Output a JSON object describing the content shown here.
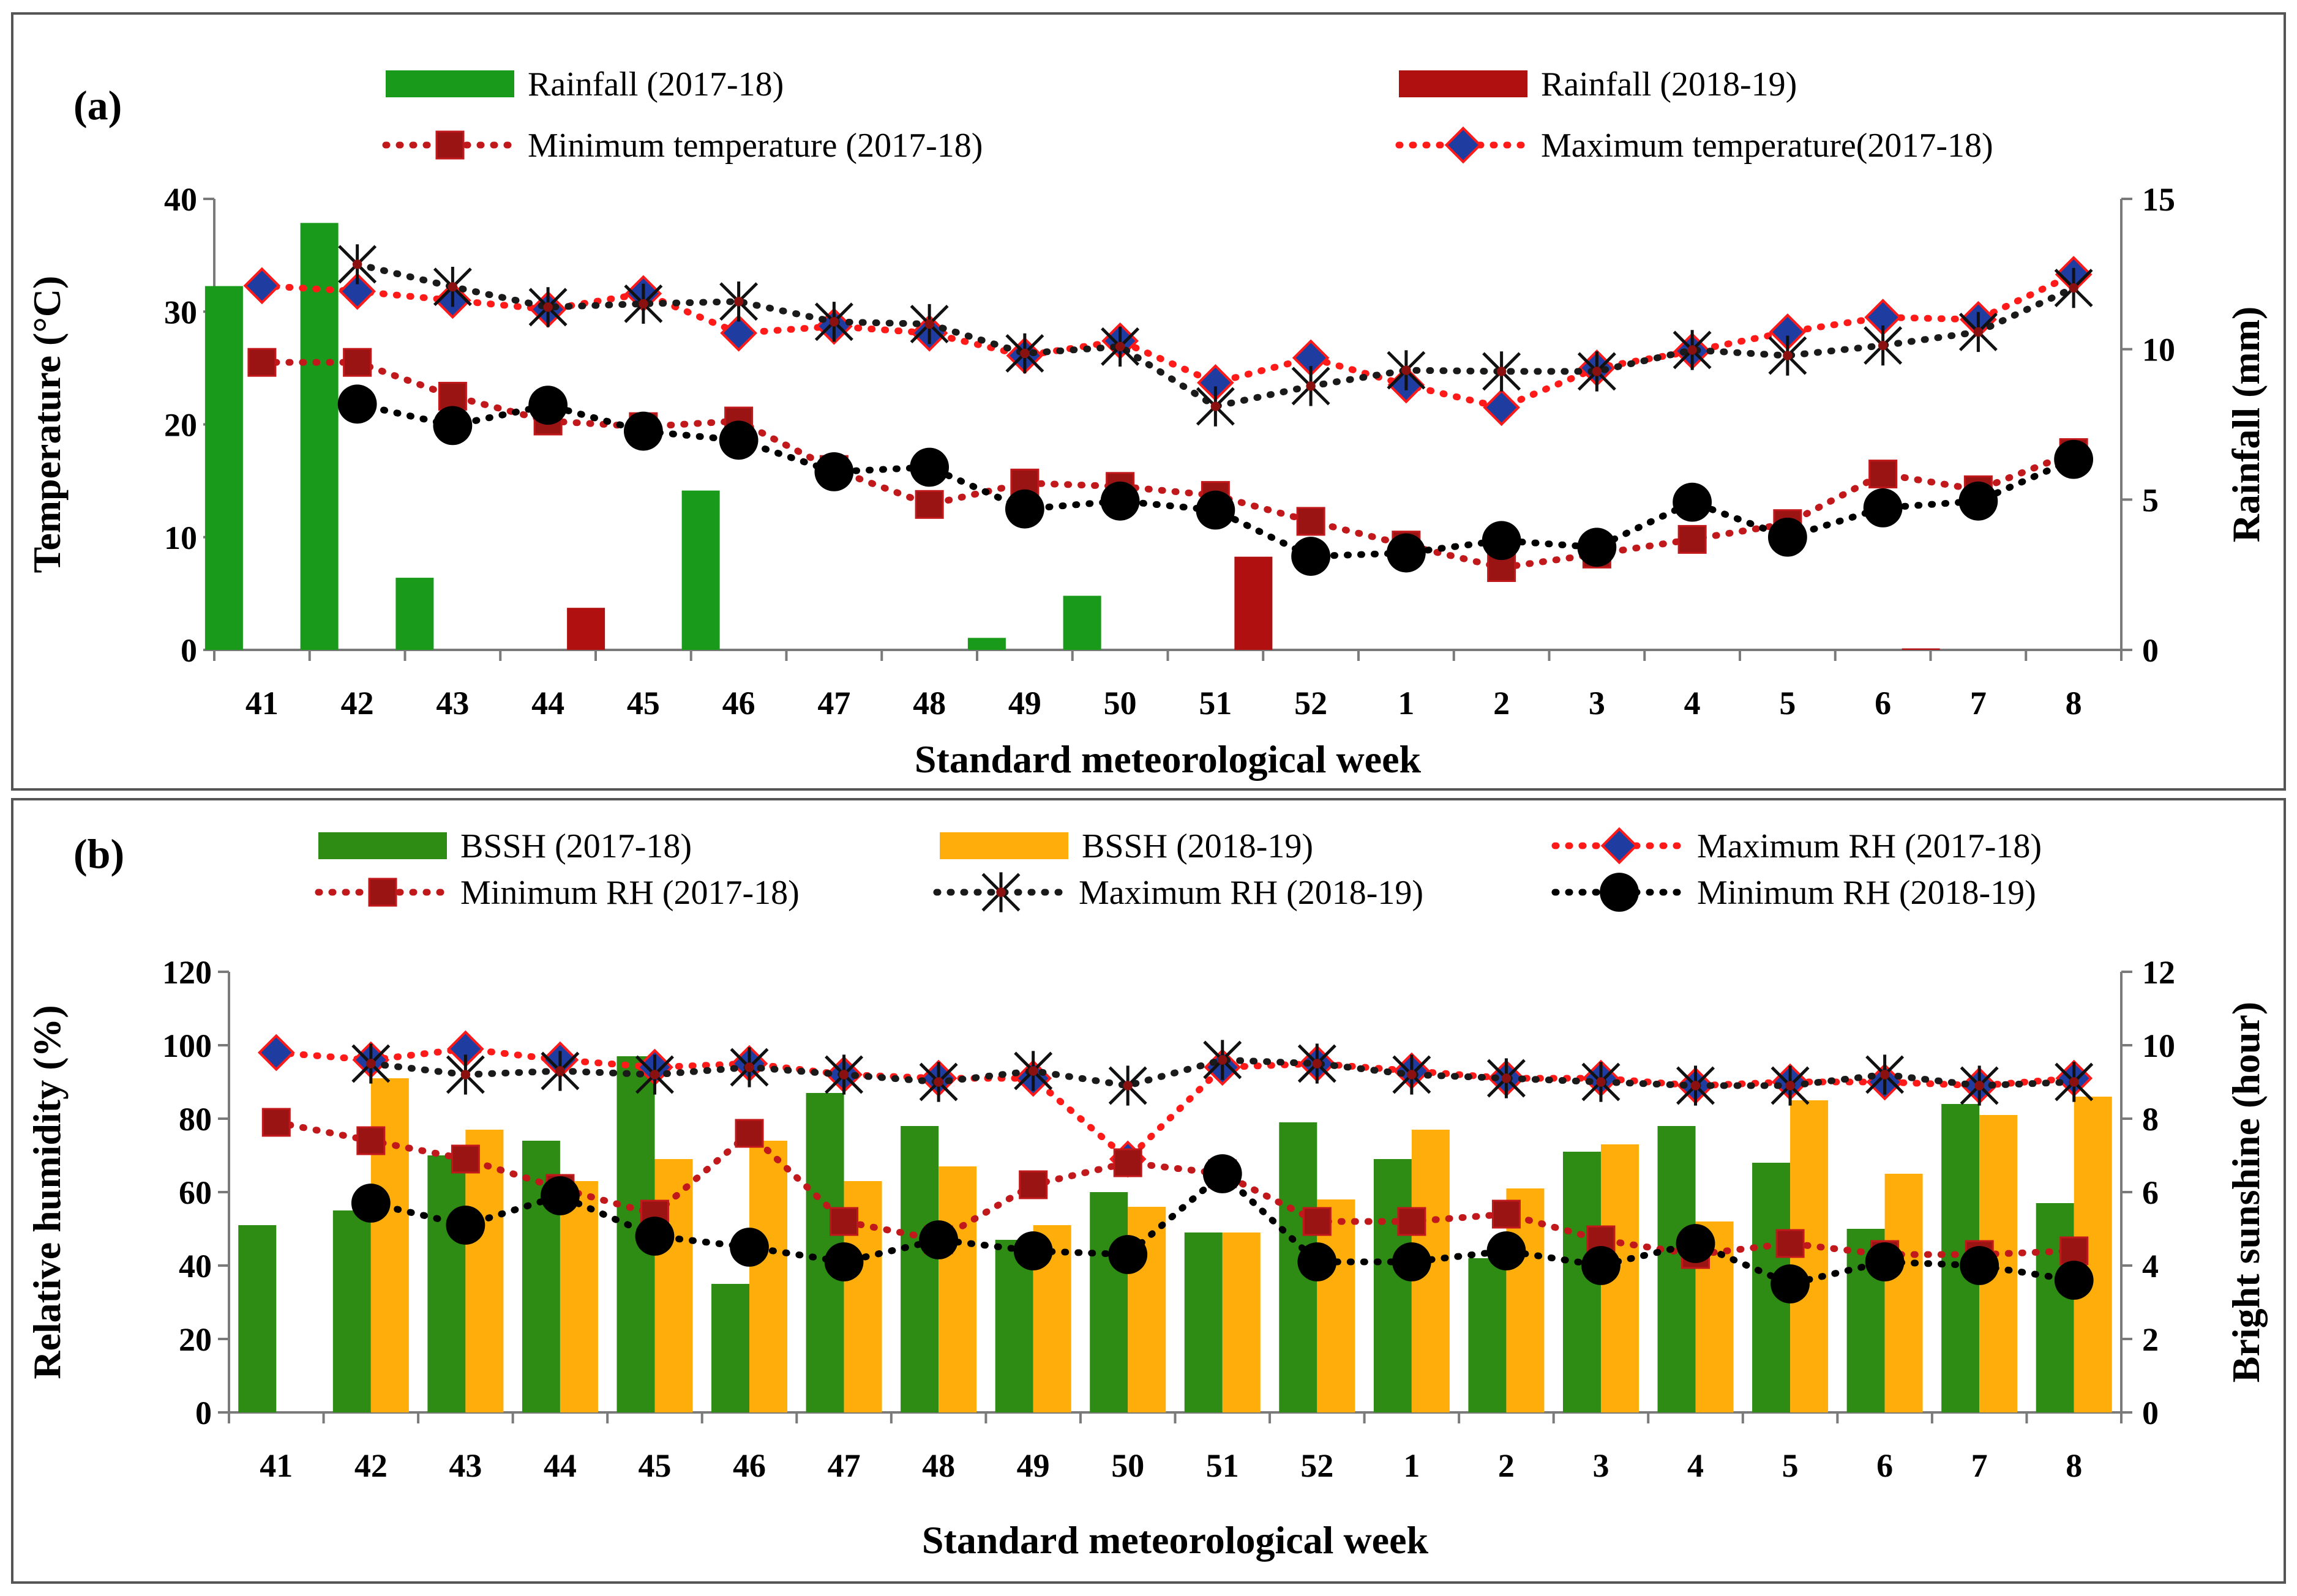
{
  "chart_data": [
    {
      "panel": "(a)",
      "type": "bar+line",
      "title": "",
      "xlabel": "Standard meteorological week",
      "ylabel_left": "Temperature (°C)",
      "ylabel_right": "Rainfall (mm)",
      "ylim_left": [
        0,
        40
      ],
      "ylim_right": [
        0,
        15
      ],
      "yticks_left": [
        "0",
        "10",
        "20",
        "30",
        "40"
      ],
      "yticks_right": [
        "0",
        "5",
        "10",
        "15"
      ],
      "categories": [
        "41",
        "42",
        "43",
        "44",
        "45",
        "46",
        "47",
        "48",
        "49",
        "50",
        "51",
        "52",
        "1",
        "2",
        "3",
        "4",
        "5",
        "6",
        "7",
        "8"
      ],
      "bars": [
        {
          "name": "Rainfall (2017-18)",
          "color": "#1a9a1a",
          "axis": "right",
          "values": [
            12.1,
            14.2,
            2.4,
            0,
            0,
            5.3,
            0,
            0,
            0.4,
            1.8,
            0,
            0,
            0,
            0,
            0,
            0,
            0,
            0,
            0,
            0
          ]
        },
        {
          "name": "Rainfall (2018-19)",
          "color": "#b01010",
          "axis": "right",
          "values": [
            0,
            0,
            0,
            1.4,
            0,
            0,
            0,
            0,
            0,
            0,
            3.1,
            0,
            0,
            0,
            0,
            0,
            0,
            0.05,
            0,
            0
          ]
        }
      ],
      "series": [
        {
          "name": "Minimum temperature (2017-18)",
          "color": "#c0181b",
          "marker": "square",
          "values": [
            25.5,
            25.5,
            22.5,
            20.3,
            19.8,
            20.3,
            16,
            12.9,
            14.8,
            14.5,
            13.7,
            11.4,
            9.3,
            7.3,
            8.5,
            9.8,
            11.2,
            15.6,
            14.2,
            17.5
          ]
        },
        {
          "name": "Maximum temperature(2017-18)",
          "color": "#ff1a1a",
          "marker": "diamond",
          "values": [
            32.3,
            31.8,
            31,
            30.2,
            31.6,
            28.1,
            28.7,
            28.1,
            26.1,
            27.4,
            23.7,
            25.9,
            23.5,
            21.5,
            25,
            26.5,
            28.2,
            29.5,
            29.3,
            33.3
          ]
        },
        {
          "name": "Maximum temperature (2018-19)",
          "color": "#1a1a1a",
          "marker": "asterisk",
          "in_legend": false,
          "values": [
            null,
            34.2,
            32.2,
            30.4,
            30.7,
            30.9,
            29.1,
            28.9,
            26.3,
            26.9,
            21.6,
            23.4,
            24.8,
            24.7,
            24.7,
            26.6,
            26.1,
            27,
            28.2,
            32.1
          ]
        },
        {
          "name": "Minimum temperature (2018-19)",
          "color": "#000000",
          "marker": "circle",
          "in_legend": false,
          "values": [
            null,
            21.8,
            19.9,
            21.7,
            19.4,
            18.6,
            15.8,
            16.2,
            12.5,
            13.2,
            12.4,
            8.3,
            8.6,
            9.7,
            9.1,
            13.1,
            10,
            12.6,
            13.2,
            16.9
          ]
        }
      ],
      "legend": [
        "Rainfall (2017-18)",
        "Rainfall (2018-19)",
        "Minimum temperature (2017-18)",
        "Maximum temperature(2017-18)"
      ]
    },
    {
      "panel": "(b)",
      "type": "bar+line",
      "title": "",
      "xlabel": "Standard meteorological week",
      "ylabel_left": "Relative humidity (%)",
      "ylabel_right": "Bright sunshine (hour)",
      "ylim_left": [
        0,
        120
      ],
      "ylim_right": [
        0,
        12
      ],
      "yticks_left": [
        "0",
        "20",
        "40",
        "60",
        "80",
        "100",
        "120"
      ],
      "yticks_right": [
        "0",
        "2",
        "4",
        "6",
        "8",
        "10",
        "12"
      ],
      "categories": [
        "41",
        "42",
        "43",
        "44",
        "45",
        "46",
        "47",
        "48",
        "49",
        "50",
        "51",
        "52",
        "1",
        "2",
        "3",
        "4",
        "5",
        "6",
        "7",
        "8"
      ],
      "bars": [
        {
          "name": "BSSH (2017-18)",
          "color": "#2e8b14",
          "axis": "right",
          "values": [
            5.1,
            5.5,
            7,
            7.4,
            9.7,
            3.5,
            8.7,
            7.8,
            4.7,
            6,
            4.9,
            7.9,
            6.9,
            4.2,
            7.1,
            7.8,
            6.8,
            5,
            8.4,
            5.7
          ]
        },
        {
          "name": "BSSH (2018-19)",
          "color": "#ffad0a",
          "axis": "right",
          "values": [
            null,
            9.1,
            7.7,
            6.3,
            6.9,
            7.4,
            6.3,
            6.7,
            5.1,
            5.6,
            4.9,
            5.8,
            7.7,
            6.1,
            7.3,
            5.2,
            8.5,
            6.5,
            8.1,
            8.6
          ]
        }
      ],
      "series": [
        {
          "name": "Maximum RH (2017-18)",
          "color": "#ff1a1a",
          "marker": "diamond",
          "values": [
            98,
            96,
            99,
            96,
            94,
            95,
            92,
            91,
            91,
            69,
            94,
            95,
            93,
            91,
            91,
            89,
            90,
            90,
            89,
            91
          ]
        },
        {
          "name": "Minimum RH (2017-18)",
          "color": "#c0181b",
          "marker": "square",
          "values": [
            79,
            74,
            69,
            61,
            54,
            76,
            52,
            47,
            62,
            68,
            65,
            52,
            52,
            54,
            47,
            43,
            46,
            43,
            43,
            44
          ]
        },
        {
          "name": "Maximum RH (2018-19)",
          "color": "#1a1a1a",
          "marker": "asterisk",
          "values": [
            null,
            95,
            92,
            93,
            92,
            94,
            92,
            90,
            93,
            89,
            96,
            95,
            92,
            91,
            90,
            89,
            89,
            92,
            89,
            90
          ]
        },
        {
          "name": "Minimum RH (2018-19)",
          "color": "#000000",
          "marker": "circle",
          "values": [
            null,
            57,
            51,
            59,
            48,
            45,
            41,
            47,
            44,
            43,
            65,
            41,
            41,
            44,
            40,
            46,
            35,
            41,
            40,
            36
          ]
        }
      ],
      "legend": [
        "BSSH (2017-18)",
        "BSSH (2018-19)",
        "Maximum RH (2017-18)",
        "Minimum RH (2017-18)",
        "Maximum RH (2018-19)",
        "Minimum RH (2018-19)"
      ]
    }
  ]
}
